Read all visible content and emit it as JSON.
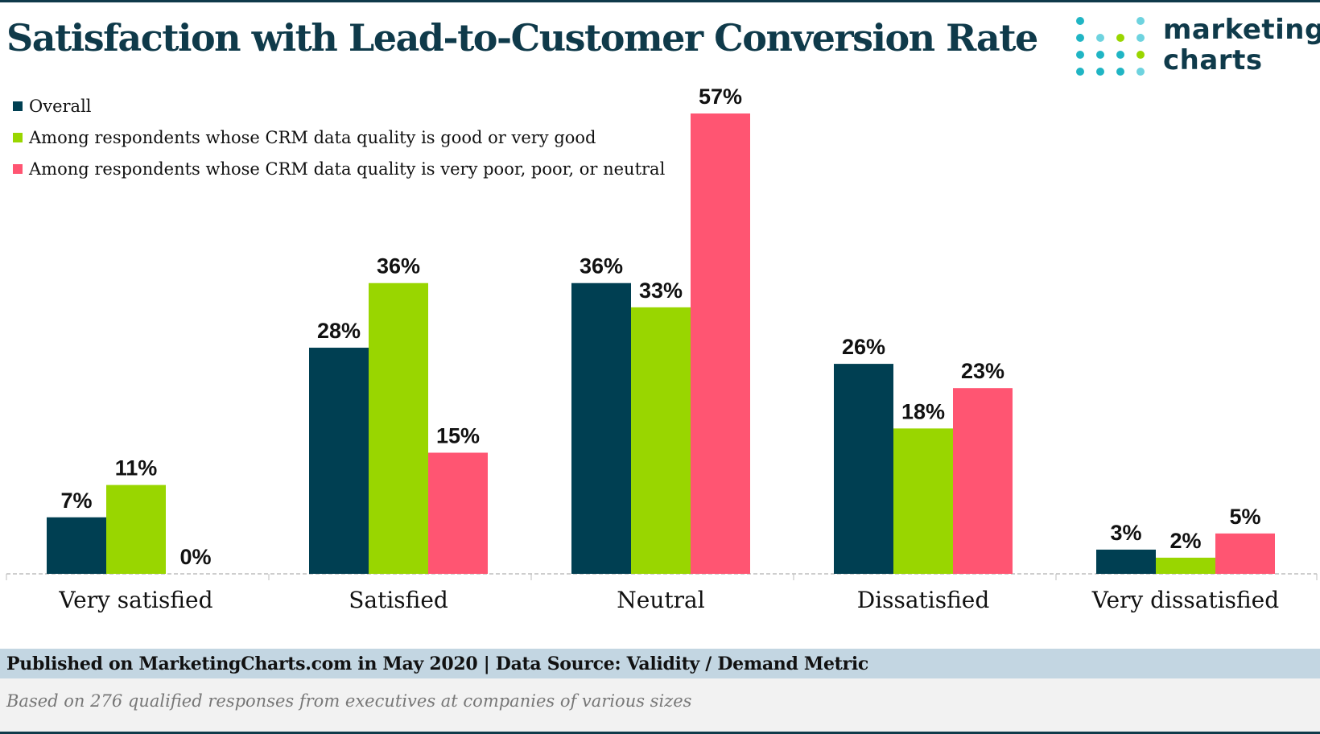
{
  "title": "Satisfaction with Lead-to-Customer Conversion Rate",
  "logo": {
    "line1": "marketing",
    "line2": "charts"
  },
  "colors": {
    "overall": "#003f52",
    "good": "#99d600",
    "poor": "#ff5572",
    "title": "#0f3a4a",
    "footer_band": "#c3d6e2"
  },
  "chart_data": {
    "type": "bar",
    "categories": [
      "Very satisfied",
      "Satisfied",
      "Neutral",
      "Dissatisfied",
      "Very dissatisfied"
    ],
    "series": [
      {
        "name": "Overall",
        "values": [
          7,
          28,
          36,
          26,
          3
        ]
      },
      {
        "name": "Among respondents whose CRM data quality is good or very good",
        "values": [
          11,
          36,
          33,
          18,
          2
        ]
      },
      {
        "name": "Among respondents whose CRM data quality is very poor, poor, or neutral",
        "values": [
          0,
          15,
          57,
          23,
          5
        ]
      }
    ],
    "value_suffix": "%",
    "ylim": [
      0,
      57
    ],
    "grid": false,
    "legend_placement": "top-left"
  },
  "footer": {
    "published": "Published on MarketingCharts.com in May 2020 | Data Source: Validity / Demand Metric",
    "note": "Based on 276 qualified responses from executives at companies of various sizes"
  }
}
